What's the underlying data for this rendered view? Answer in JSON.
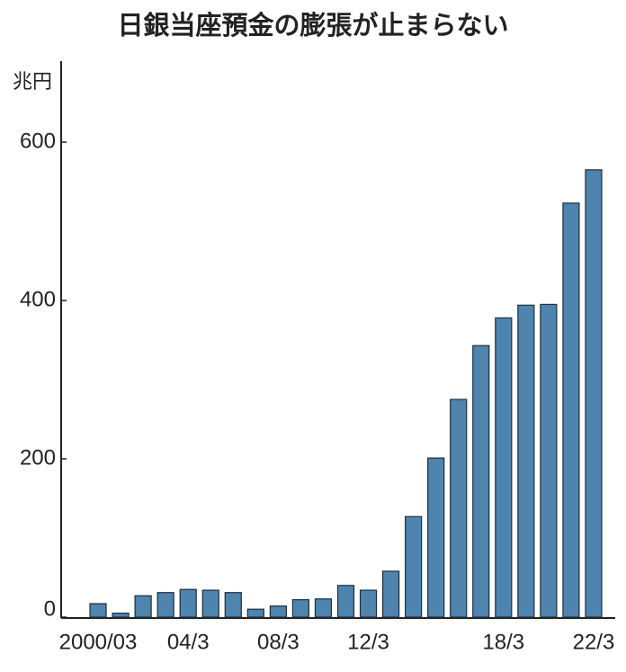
{
  "chart_data": {
    "type": "bar",
    "title": "日銀当座預金の膨張が止まらない",
    "y_unit": "兆円",
    "categories": [
      "2000/03",
      null,
      null,
      null,
      "04/3",
      null,
      null,
      null,
      "08/3",
      null,
      null,
      null,
      "12/3",
      null,
      null,
      null,
      null,
      null,
      "18/3",
      null,
      null,
      null,
      "22/3"
    ],
    "values": [
      17,
      5,
      27,
      31,
      35,
      34,
      31,
      10,
      14,
      22,
      23,
      40,
      34,
      58,
      127,
      201,
      275,
      343,
      378,
      394,
      395,
      523,
      565
    ],
    "color": "#4f84ae",
    "ylim": [
      0,
      700
    ],
    "yticks": [
      0,
      200,
      400,
      600
    ],
    "grid": false
  }
}
